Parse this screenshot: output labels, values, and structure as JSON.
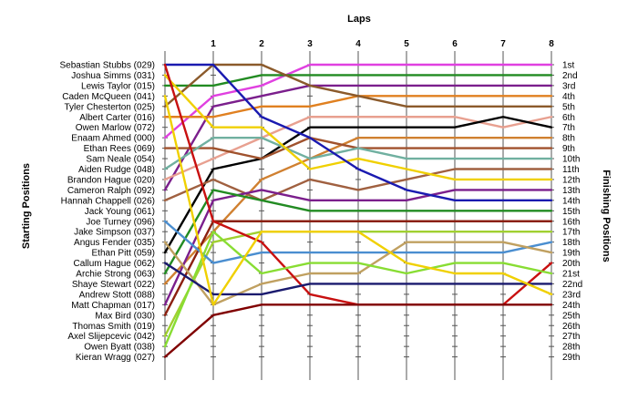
{
  "chart_data": {
    "type": "line",
    "title": "",
    "xlabel": "Laps",
    "ylabel_left": "Starting Positions",
    "ylabel_right": "Finishing Positions",
    "x": [
      0,
      1,
      2,
      3,
      4,
      5,
      6,
      7,
      8
    ],
    "x_tick_labels": [
      "1",
      "2",
      "3",
      "4",
      "5",
      "6",
      "7",
      "8"
    ],
    "y_range": [
      1,
      29
    ],
    "y_inverted": true,
    "grid": "vertical",
    "starting_positions": [
      "Sebastian Stubbs (029)",
      "Joshua Simms (031)",
      "Lewis Taylor (015)",
      "Caden McQueen (041)",
      "Tyler Chesterton (025)",
      "Albert Carter (016)",
      "Owen Marlow (072)",
      "Enaam Ahmed (000)",
      "Ethan Rees (069)",
      "Sam Neale (054)",
      "Aiden Rudge (048)",
      "Brandon Hague (020)",
      "Cameron Ralph (092)",
      "Hannah Chappell (026)",
      "Jack Young (061)",
      "Joe Turney (096)",
      "Jake Simpson (037)",
      "Angus Fender (035)",
      "Ethan Pitt (059)",
      "Callum Hague (062)",
      "Archie Strong (063)",
      "Shaye Stewart (022)",
      "Andrew Stott (088)",
      "Matt Chapman (017)",
      "Max Bird (030)",
      "Thomas Smith (019)",
      "Axel Slijepcevic (042)",
      "Owen Byatt (038)",
      "Kieran Wragg (027)"
    ],
    "finishing_positions": [
      "1st",
      "2nd",
      "3rd",
      "4th",
      "5th",
      "6th",
      "7th",
      "8th",
      "9th",
      "10th",
      "11th",
      "12th",
      "13th",
      "14th",
      "15th",
      "16th",
      "17th",
      "18th",
      "19th",
      "20th",
      "21st",
      "22nd",
      "23rd",
      "24th",
      "25th",
      "26th",
      "27th",
      "28th",
      "29th"
    ],
    "series": [
      {
        "color": "#e040e0",
        "positions": [
          8,
          4,
          3,
          1,
          1,
          1,
          1,
          1,
          1
        ]
      },
      {
        "color": "#228b22",
        "positions": [
          3,
          3,
          2,
          2,
          2,
          2,
          2,
          2,
          2
        ]
      },
      {
        "color": "#7b1f8c",
        "positions": [
          13,
          5,
          4,
          3,
          3,
          3,
          3,
          3,
          3
        ]
      },
      {
        "color": "#e08020",
        "positions": [
          6,
          6,
          5,
          5,
          4,
          4,
          4,
          4,
          4
        ]
      },
      {
        "color": "#8b5a2b",
        "positions": [
          5,
          1,
          1,
          3,
          4,
          5,
          5,
          5,
          5
        ]
      },
      {
        "color": "#e8a090",
        "positions": [
          12,
          10,
          8,
          6,
          6,
          6,
          6,
          7,
          6
        ]
      },
      {
        "color": "#000000",
        "positions": [
          19,
          11,
          10,
          7,
          7,
          7,
          7,
          6,
          7
        ]
      },
      {
        "color": "#d08030",
        "positions": [
          22,
          17,
          12,
          10,
          8,
          8,
          8,
          8,
          8
        ]
      },
      {
        "color": "#a0522d",
        "positions": [
          9,
          9,
          10,
          8,
          9,
          9,
          9,
          9,
          9
        ]
      },
      {
        "color": "#70b0a0",
        "positions": [
          11,
          8,
          8,
          10,
          9,
          10,
          10,
          10,
          10
        ]
      },
      {
        "color": "#a06040",
        "positions": [
          14,
          12,
          14,
          12,
          13,
          12,
          11,
          11,
          11
        ]
      },
      {
        "color": "#f0d000",
        "positions": [
          2,
          7,
          7,
          11,
          10,
          11,
          12,
          12,
          12
        ]
      },
      {
        "color": "#7b1f8c",
        "positions": [
          24,
          14,
          13,
          14,
          14,
          14,
          13,
          13,
          13
        ]
      },
      {
        "color": "#1a1ab0",
        "positions": [
          1,
          1,
          6,
          8,
          11,
          13,
          14,
          14,
          14
        ]
      },
      {
        "color": "#228b22",
        "positions": [
          21,
          13,
          14,
          15,
          15,
          15,
          15,
          15,
          15
        ]
      },
      {
        "color": "#8b2010",
        "positions": [
          25,
          16,
          16,
          16,
          16,
          16,
          16,
          16,
          16
        ]
      },
      {
        "color": "#a0d030",
        "positions": [
          27,
          18,
          17,
          17,
          17,
          17,
          17,
          17,
          17
        ]
      },
      {
        "color": "#4a8ed0",
        "positions": [
          16,
          20,
          19,
          19,
          19,
          19,
          19,
          19,
          18
        ]
      },
      {
        "color": "#c0a060",
        "positions": [
          18,
          24,
          22,
          21,
          21,
          18,
          18,
          18,
          19
        ]
      },
      {
        "color": "#c81010",
        "positions": [
          1,
          16,
          18,
          23,
          24,
          24,
          24,
          24,
          20
        ]
      },
      {
        "color": "#88dd33",
        "positions": [
          28,
          17,
          21,
          20,
          20,
          21,
          20,
          20,
          21
        ]
      },
      {
        "color": "#1a1a6e",
        "positions": [
          20,
          23,
          23,
          22,
          22,
          22,
          22,
          22,
          22
        ]
      },
      {
        "color": "#f0d000",
        "positions": [
          4,
          24,
          17,
          17,
          17,
          20,
          21,
          21,
          23
        ]
      },
      {
        "color": "#800000",
        "positions": [
          29,
          25,
          24,
          24,
          24,
          24,
          24,
          24,
          24
        ]
      }
    ]
  }
}
